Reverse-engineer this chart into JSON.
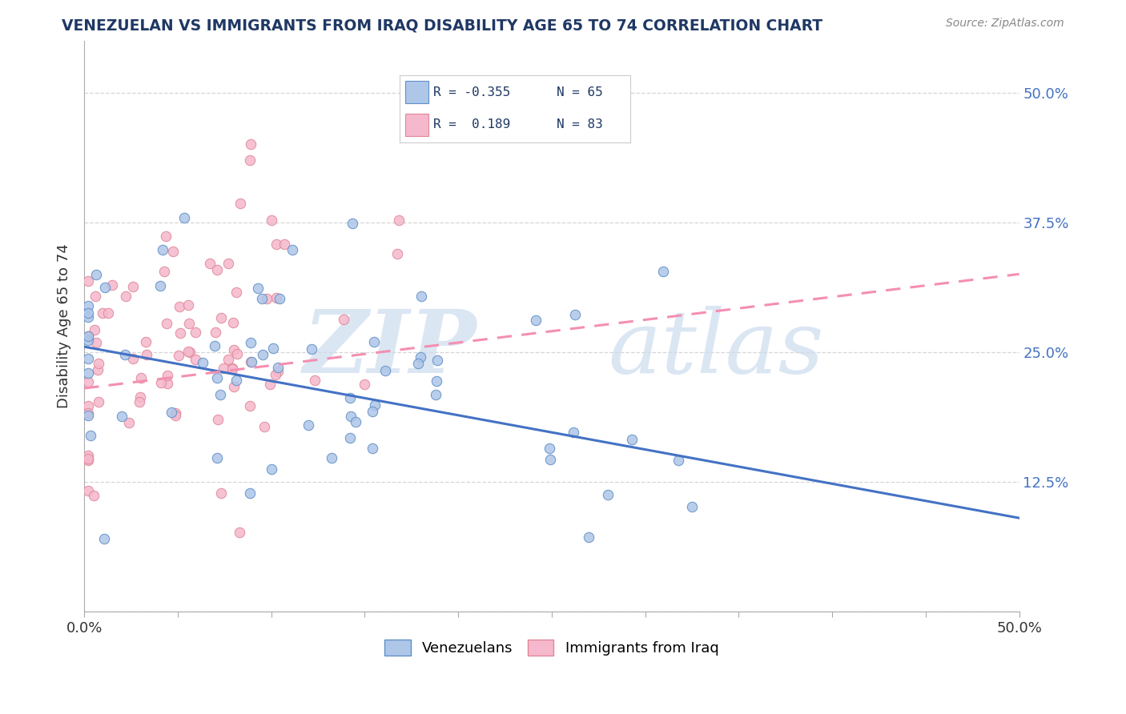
{
  "title": "VENEZUELAN VS IMMIGRANTS FROM IRAQ DISABILITY AGE 65 TO 74 CORRELATION CHART",
  "source": "Source: ZipAtlas.com",
  "ylabel": "Disability Age 65 to 74",
  "xlim": [
    0.0,
    0.5
  ],
  "ylim": [
    0.0,
    0.55
  ],
  "venezuelan_color": "#aec6e8",
  "iraq_color": "#f5b8cc",
  "venezuelan_line_color": "#4472c4",
  "iraq_line_color": "#f48fb1",
  "background_color": "#ffffff",
  "grid_color": "#cccccc",
  "title_color": "#1f3864",
  "source_color": "#888888",
  "watermark_zip_color": "#dde8f5",
  "watermark_atlas_color": "#dde8f5",
  "legend_text_color": "#1f3864",
  "right_axis_color": "#4472c4"
}
